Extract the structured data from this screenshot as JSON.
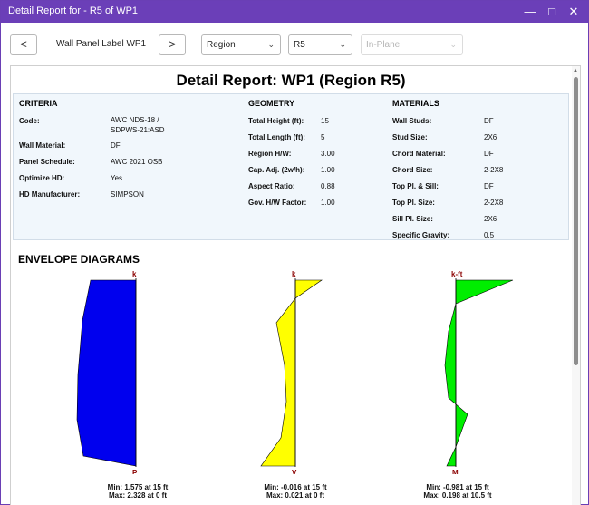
{
  "window": {
    "title": "Detail Report for - R5 of WP1"
  },
  "toolbar": {
    "prev_label": "<",
    "panel_label": "Wall Panel Label WP1",
    "next_label": ">",
    "region_select": "Region",
    "region_value_select": "R5",
    "plane_select": "In-Plane"
  },
  "report": {
    "title": "Detail Report: WP1 (Region R5)",
    "criteria": {
      "heading": "CRITERIA",
      "rows": [
        {
          "label": "Code:",
          "value_line1": "AWC NDS-18 /",
          "value_line2": "SDPWS-21:ASD"
        },
        {
          "label": "Wall Material:",
          "value_line1": "DF"
        },
        {
          "label": "Panel Schedule:",
          "value_line1": "AWC 2021 OSB"
        },
        {
          "label": "Optimize HD:",
          "value_line1": "Yes"
        },
        {
          "label": "HD Manufacturer:",
          "value_line1": "SIMPSON"
        }
      ]
    },
    "geometry": {
      "heading": "GEOMETRY",
      "rows": [
        {
          "label": "Total Height (ft):",
          "value": "15"
        },
        {
          "label": "Total Length (ft):",
          "value": "5"
        },
        {
          "label": "Region H/W:",
          "value": "3.00"
        },
        {
          "label": "Cap. Adj. (2w/h):",
          "value": "1.00"
        },
        {
          "label": "Aspect Ratio:",
          "value": "0.88"
        },
        {
          "label": "Gov. H/W Factor:",
          "value": "1.00"
        }
      ]
    },
    "materials": {
      "heading": "MATERIALS",
      "rows": [
        {
          "label": "Wall Studs:",
          "value": "DF"
        },
        {
          "label": "Stud Size:",
          "value": "2X6"
        },
        {
          "label": "Chord Material:",
          "value": "DF"
        },
        {
          "label": "Chord Size:",
          "value": "2-2X8"
        },
        {
          "label": "Top Pl. & Sill:",
          "value": "DF"
        },
        {
          "label": "Top Pl. Size:",
          "value": "2-2X8"
        },
        {
          "label": "Sill Pl. Size:",
          "value": "2X6"
        },
        {
          "label": "Specific Gravity:",
          "value": "0.5"
        }
      ]
    },
    "envelope_heading": "ENVELOPE DIAGRAMS",
    "diagrams": [
      {
        "unit": "k",
        "label": "P",
        "color": "#0000ee",
        "min": "Min: 1.575 at 15 ft",
        "max": "Max: 2.328 at 0 ft"
      },
      {
        "unit": "k",
        "label": "V",
        "color": "#ffff00",
        "min": "Min: -0.016 at 15 ft",
        "max": "Max: 0.021 at 0 ft"
      },
      {
        "unit": "k-ft",
        "label": "M",
        "color": "#00ee00",
        "min": "Min: -0.981 at 15 ft",
        "max": "Max: 0.198 at 10.5 ft"
      }
    ]
  },
  "colors": {
    "titlebar": "#6b3fb8",
    "axis_label": "#8b0000"
  }
}
